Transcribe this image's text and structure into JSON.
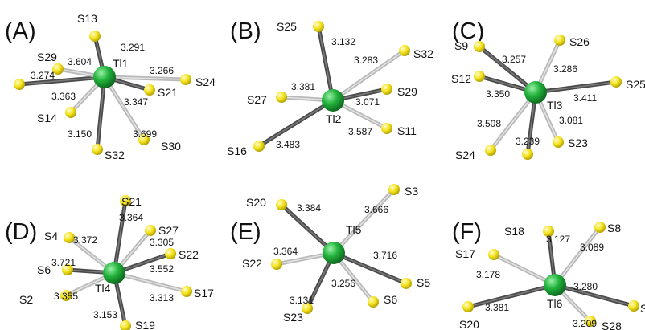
{
  "panels": [
    {
      "label": "(A)",
      "center": "Tl1",
      "neighbors": [
        {
          "atom": "S13",
          "distance": "3.291"
        },
        {
          "atom": "S24",
          "distance": "3.266"
        },
        {
          "atom": "S21",
          "distance": "3.347"
        },
        {
          "atom": "S30",
          "distance": "3.699"
        },
        {
          "atom": "S32",
          "distance": "3.150"
        },
        {
          "atom": "S14",
          "distance": "3.363"
        },
        {
          "atom": "",
          "distance": "3.274"
        },
        {
          "atom": "S29",
          "distance": "3.604"
        }
      ]
    },
    {
      "label": "(B)",
      "center": "Tl2",
      "neighbors": [
        {
          "atom": "S25",
          "distance": "3.132"
        },
        {
          "atom": "S32",
          "distance": "3.283"
        },
        {
          "atom": "S29",
          "distance": "3.071"
        },
        {
          "atom": "S11",
          "distance": "3.587"
        },
        {
          "atom": "S16",
          "distance": "3.483"
        },
        {
          "atom": "S27",
          "distance": "3.381"
        }
      ]
    },
    {
      "label": "(C)",
      "center": "Tl3",
      "neighbors": [
        {
          "atom": "S9",
          "distance": "3.257"
        },
        {
          "atom": "S26",
          "distance": "3.286"
        },
        {
          "atom": "S25",
          "distance": "3.411"
        },
        {
          "atom": "S23",
          "distance": "3.081"
        },
        {
          "atom": "",
          "distance": "3.239"
        },
        {
          "atom": "S24",
          "distance": "3.508"
        },
        {
          "atom": "S12",
          "distance": "3.350"
        }
      ]
    },
    {
      "label": "(D)",
      "center": "Tl4",
      "neighbors": [
        {
          "atom": "S21",
          "distance": "3.364"
        },
        {
          "atom": "S27",
          "distance": "3.305"
        },
        {
          "atom": "S22",
          "distance": "3.552"
        },
        {
          "atom": "S17",
          "distance": "3.313"
        },
        {
          "atom": "S19",
          "distance": "3.153"
        },
        {
          "atom": "S2",
          "distance": "3.355"
        },
        {
          "atom": "S6",
          "distance": "3.721"
        },
        {
          "atom": "S4",
          "distance": "3.372"
        }
      ]
    },
    {
      "label": "(E)",
      "center": "Tl5",
      "neighbors": [
        {
          "atom": "S20",
          "distance": "3.384"
        },
        {
          "atom": "S3",
          "distance": "3.666"
        },
        {
          "atom": "S5",
          "distance": "3.716"
        },
        {
          "atom": "S6",
          "distance": "3.256"
        },
        {
          "atom": "S23",
          "distance": "3.131"
        },
        {
          "atom": "S22",
          "distance": "3.364"
        }
      ]
    },
    {
      "label": "(F)",
      "center": "Tl6",
      "neighbors": [
        {
          "atom": "S18",
          "distance": "3.127"
        },
        {
          "atom": "S8",
          "distance": "3.089"
        },
        {
          "atom": "S",
          "distance": "3.280"
        },
        {
          "atom": "S28",
          "distance": "3.209"
        },
        {
          "atom": "S20",
          "distance": "3.381"
        },
        {
          "atom": "S17",
          "distance": "3.178"
        }
      ]
    }
  ],
  "colors": {
    "thallium": "#1fa83a",
    "sulfur": "#f2e21a",
    "bond_dark": "#4a4a4a",
    "bond_light": "#b9b9b9"
  }
}
